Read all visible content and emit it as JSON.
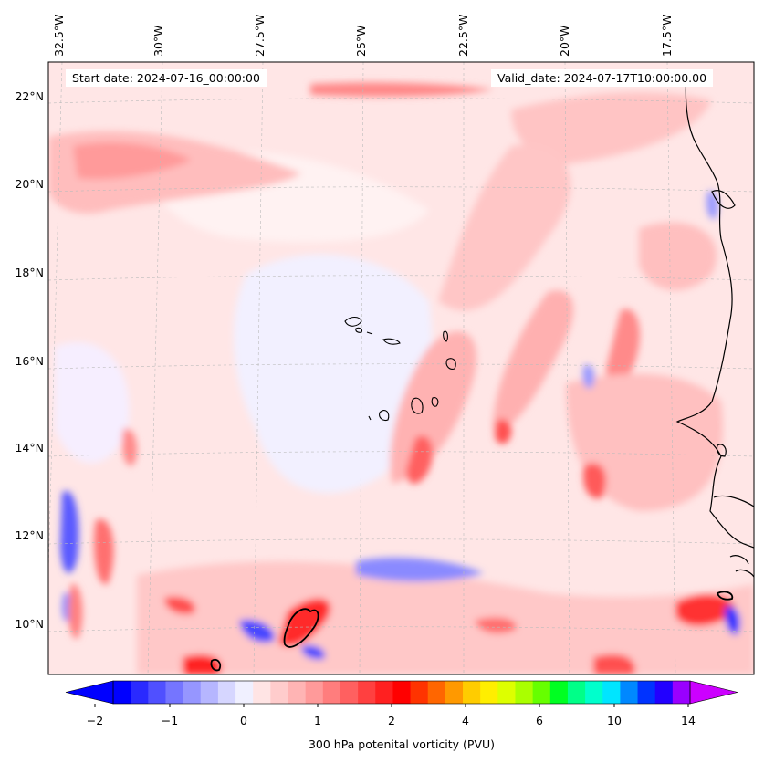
{
  "map": {
    "variable": "300 hPa potential vorticity",
    "start_label": "Start date: 2024-07-16_00:00:00",
    "valid_label": "Valid_date: 2024-07-17T10:00:00.00",
    "lon_labels": [
      "32.5°W",
      "30°W",
      "27.5°W",
      "25°W",
      "22.5°W",
      "20°W",
      "17.5°W"
    ],
    "lat_labels": [
      "22°N",
      "20°N",
      "18°N",
      "16°N",
      "14°N",
      "12°N",
      "10°N"
    ],
    "extent": {
      "lon_min": -32.6,
      "lon_max": -15.8,
      "lat_min": 8.9,
      "lat_max": 22.8
    }
  },
  "colorbar": {
    "label": "300 hPa potenital vorticity (PVU)",
    "tick_labels": [
      "−2",
      "−1",
      "0",
      "1",
      "2",
      "4",
      "6",
      "10",
      "14"
    ],
    "colors": [
      "#0000ff",
      "#2a2aff",
      "#5050ff",
      "#7575ff",
      "#9696ff",
      "#b6b6ff",
      "#d6d6ff",
      "#f0f0ff",
      "#ffe4e4",
      "#ffcccc",
      "#ffb4b4",
      "#ff9a9a",
      "#ff7d7d",
      "#ff6060",
      "#ff4040",
      "#ff2020",
      "#ff0000",
      "#ff3300",
      "#ff6600",
      "#ff9900",
      "#ffcc00",
      "#ffee00",
      "#ddff00",
      "#aaff00",
      "#66ff00",
      "#00ff22",
      "#00ff88",
      "#00ffcc",
      "#00e5ff",
      "#0088ff",
      "#0033ff",
      "#2200ff",
      "#9900ff"
    ],
    "extend_low": "#0000ff",
    "extend_high": "#cc00ff"
  }
}
